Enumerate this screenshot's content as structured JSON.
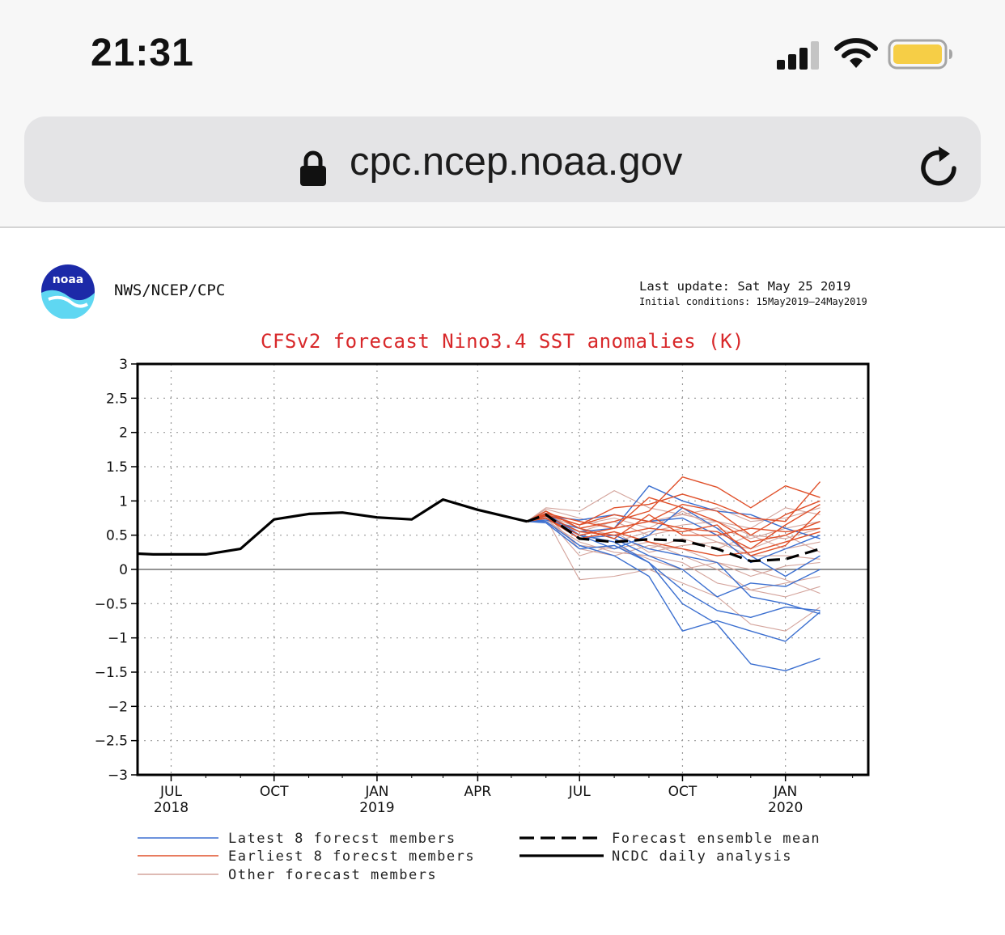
{
  "status_bar": {
    "time": "21:31",
    "icons": [
      "signal-icon",
      "wifi-icon",
      "battery-icon"
    ]
  },
  "browser": {
    "url": "cpc.ncep.noaa.gov",
    "icons": [
      "lock-icon",
      "reload-icon"
    ]
  },
  "page": {
    "logo_text": "noaa",
    "org": "NWS/NCEP/CPC",
    "last_update": "Last update: Sat May 25 2019",
    "initial_conditions": "Initial conditions: 15May2019—24May2019"
  },
  "colors": {
    "latest": "#3b6fd0",
    "earliest": "#e0502a",
    "other": "#d4a49c",
    "title": "#d8282a"
  },
  "chart_data": {
    "type": "line",
    "title": "CFSv2 forecast Nino3.4 SST anomalies (K)",
    "xlabel": "",
    "ylabel": "",
    "ylim": [
      -3,
      3
    ],
    "xlim": [
      "2018-06-01",
      "2020-03-15"
    ],
    "grid": true,
    "yticks": [
      3,
      2.5,
      2,
      1.5,
      1,
      0.5,
      0,
      -0.5,
      -1,
      -1.5,
      -2,
      -2.5,
      -3
    ],
    "ytick_labels": [
      "3",
      "2.5",
      "2",
      "1.5",
      "1",
      "0.5",
      "0",
      "−0.5",
      "−1",
      "−1.5",
      "−2",
      "−2.5",
      "−3"
    ],
    "xticks": [
      {
        "date": "2018-07-01",
        "label": "JUL",
        "year": "2018"
      },
      {
        "date": "2018-10-01",
        "label": "OCT",
        "year": ""
      },
      {
        "date": "2019-01-01",
        "label": "JAN",
        "year": "2019"
      },
      {
        "date": "2019-04-01",
        "label": "APR",
        "year": ""
      },
      {
        "date": "2019-07-01",
        "label": "JUL",
        "year": ""
      },
      {
        "date": "2019-10-01",
        "label": "OCT",
        "year": ""
      },
      {
        "date": "2020-01-01",
        "label": "JAN",
        "year": "2020"
      }
    ],
    "forecast_x": [
      "2019-05-15",
      "2019-06-01",
      "2019-07-01",
      "2019-08-01",
      "2019-09-01",
      "2019-10-01",
      "2019-11-01",
      "2019-12-01",
      "2020-01-01",
      "2020-02-01"
    ],
    "series": [
      {
        "name": "NCDC daily analysis",
        "style": "solid-black",
        "x": [
          "2018-06-01",
          "2018-06-15",
          "2018-07-01",
          "2018-08-01",
          "2018-09-01",
          "2018-10-01",
          "2018-11-01",
          "2018-12-01",
          "2019-01-01",
          "2019-02-01",
          "2019-03-01",
          "2019-04-01",
          "2019-05-15"
        ],
        "y": [
          0.23,
          0.22,
          0.22,
          0.22,
          0.3,
          0.73,
          0.81,
          0.83,
          0.76,
          0.73,
          1.02,
          0.87,
          0.7
        ]
      },
      {
        "name": "Forecast ensemble mean",
        "style": "dashed-black",
        "x": [
          "2019-05-15",
          "2019-06-01",
          "2019-07-01",
          "2019-08-01",
          "2019-09-01",
          "2019-10-01",
          "2019-11-01",
          "2019-12-01",
          "2020-01-01",
          "2020-02-01"
        ],
        "y": [
          0.7,
          0.8,
          0.45,
          0.4,
          0.44,
          0.42,
          0.3,
          0.12,
          0.15,
          0.3
        ]
      },
      {
        "name": "Latest 8 forecst members",
        "group": "latest",
        "y": [
          0.7,
          0.78,
          0.55,
          0.6,
          1.22,
          1.0,
          0.85,
          0.8,
          0.6,
          0.45
        ]
      },
      {
        "group": "latest",
        "y": [
          0.7,
          0.75,
          0.5,
          0.4,
          0.1,
          -0.5,
          -0.8,
          -1.38,
          -1.48,
          -1.3
        ]
      },
      {
        "group": "latest",
        "y": [
          0.7,
          0.7,
          0.35,
          0.2,
          -0.1,
          -0.9,
          -0.75,
          -0.9,
          -1.05,
          -0.62
        ]
      },
      {
        "group": "latest",
        "y": [
          0.7,
          0.72,
          0.6,
          0.45,
          0.2,
          0.0,
          -0.4,
          -0.2,
          -0.25,
          0.0
        ]
      },
      {
        "group": "latest",
        "y": [
          0.7,
          0.8,
          0.45,
          0.5,
          0.3,
          0.2,
          0.1,
          -0.4,
          -0.5,
          -0.65
        ]
      },
      {
        "group": "latest",
        "y": [
          0.7,
          0.68,
          0.3,
          0.35,
          0.1,
          -0.3,
          -0.6,
          -0.7,
          -0.55,
          -0.6
        ]
      },
      {
        "group": "latest",
        "y": [
          0.7,
          0.78,
          0.72,
          0.8,
          0.7,
          0.75,
          0.5,
          0.1,
          0.3,
          0.5
        ]
      },
      {
        "group": "latest",
        "y": [
          0.7,
          0.82,
          0.5,
          0.3,
          0.5,
          0.9,
          0.6,
          0.2,
          -0.1,
          0.2
        ]
      },
      {
        "name": "Earliest 8 forecst members",
        "group": "earliest",
        "y": [
          0.7,
          0.85,
          0.6,
          0.7,
          0.85,
          1.35,
          1.2,
          0.9,
          1.22,
          1.05
        ]
      },
      {
        "group": "earliest",
        "y": [
          0.7,
          0.8,
          0.65,
          0.9,
          0.95,
          1.1,
          0.95,
          0.75,
          0.7,
          1.28
        ]
      },
      {
        "group": "earliest",
        "y": [
          0.7,
          0.75,
          0.5,
          0.6,
          0.7,
          0.6,
          0.55,
          0.3,
          0.65,
          0.95
        ]
      },
      {
        "group": "earliest",
        "y": [
          0.7,
          0.82,
          0.7,
          0.6,
          1.05,
          0.9,
          0.7,
          0.4,
          0.5,
          0.7
        ]
      },
      {
        "group": "earliest",
        "y": [
          0.7,
          0.78,
          0.55,
          0.5,
          0.6,
          0.55,
          0.65,
          0.2,
          0.35,
          0.85
        ]
      },
      {
        "group": "earliest",
        "y": [
          0.7,
          0.85,
          0.6,
          0.45,
          0.8,
          0.5,
          0.5,
          0.6,
          0.55,
          0.6
        ]
      },
      {
        "group": "earliest",
        "y": [
          0.7,
          0.75,
          0.45,
          0.55,
          0.4,
          0.3,
          0.2,
          0.25,
          0.4,
          0.55
        ]
      },
      {
        "group": "earliest",
        "y": [
          0.7,
          0.8,
          0.65,
          0.8,
          0.7,
          0.95,
          0.85,
          0.5,
          0.8,
          1.0
        ]
      },
      {
        "name": "Other forecast members",
        "group": "other",
        "y": [
          0.7,
          0.9,
          0.85,
          1.15,
          0.9,
          0.8,
          0.7,
          0.6,
          0.9,
          0.8
        ]
      },
      {
        "group": "other",
        "y": [
          0.7,
          0.75,
          -0.15,
          -0.1,
          0.0,
          -0.2,
          -0.4,
          -0.8,
          -0.9,
          -0.55
        ]
      },
      {
        "group": "other",
        "y": [
          0.7,
          0.8,
          0.3,
          0.2,
          0.35,
          0.3,
          0.1,
          0.0,
          -0.15,
          -0.35
        ]
      },
      {
        "group": "other",
        "y": [
          0.7,
          0.72,
          0.55,
          0.7,
          0.5,
          0.6,
          0.4,
          0.3,
          0.5,
          0.25
        ]
      },
      {
        "group": "other",
        "y": [
          0.7,
          0.85,
          0.5,
          0.4,
          0.55,
          0.65,
          0.7,
          0.5,
          0.45,
          0.6
        ]
      },
      {
        "group": "other",
        "y": [
          0.7,
          0.7,
          0.4,
          0.25,
          0.2,
          0.1,
          -0.2,
          -0.3,
          -0.2,
          -0.1
        ]
      },
      {
        "group": "other",
        "y": [
          0.7,
          0.88,
          0.75,
          0.6,
          0.7,
          0.8,
          0.9,
          0.7,
          0.75,
          0.9
        ]
      },
      {
        "group": "other",
        "y": [
          0.7,
          0.76,
          0.2,
          0.35,
          0.15,
          0.0,
          0.1,
          -0.1,
          0.05,
          0.1
        ]
      },
      {
        "group": "other",
        "y": [
          0.7,
          0.8,
          0.6,
          0.5,
          0.3,
          0.45,
          0.3,
          0.5,
          0.3,
          0.4
        ]
      },
      {
        "group": "other",
        "y": [
          0.7,
          0.74,
          0.35,
          0.3,
          0.4,
          0.2,
          0.0,
          -0.3,
          -0.4,
          -0.25
        ]
      },
      {
        "group": "other",
        "y": [
          0.7,
          0.82,
          0.65,
          0.75,
          0.6,
          0.85,
          0.6,
          0.45,
          0.6,
          0.7
        ]
      },
      {
        "group": "other",
        "y": [
          0.7,
          0.78,
          0.45,
          0.55,
          0.25,
          0.35,
          0.4,
          0.2,
          0.2,
          0.15
        ]
      }
    ],
    "legend": [
      {
        "label": "Latest 8 forecst members",
        "style": "latest"
      },
      {
        "label": "Earliest 8 forecst members",
        "style": "earliest"
      },
      {
        "label": "Other forecast members",
        "style": "other"
      },
      {
        "label": "Forecast ensemble mean",
        "style": "dashed-black"
      },
      {
        "label": "NCDC daily analysis",
        "style": "solid-black"
      }
    ]
  }
}
